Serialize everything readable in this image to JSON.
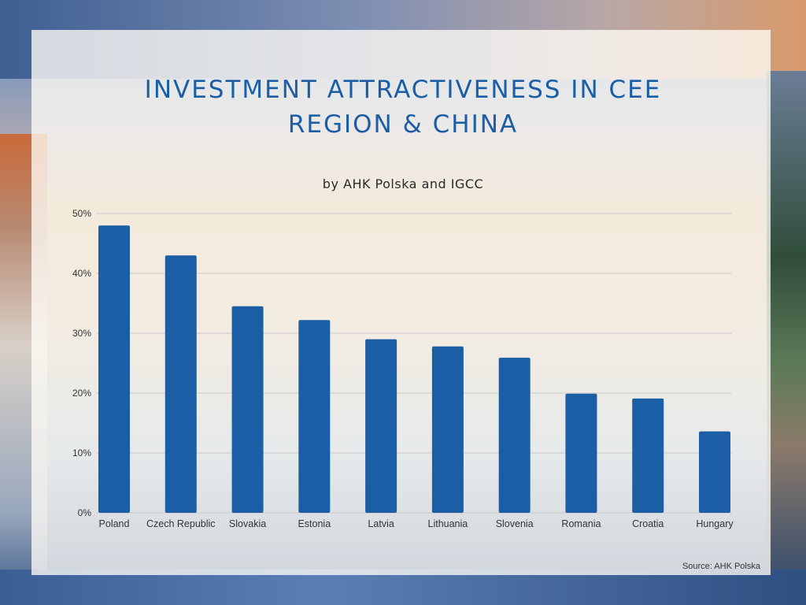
{
  "colors": {
    "bar": "#1b5ea5",
    "title": "#1b5ea5",
    "grid": "#c8c8c8"
  },
  "source_note": "Source: AHK Polska",
  "chart_data": {
    "type": "bar",
    "title_lines": [
      "INVESTMENT ATTRACTIVENESS IN CEE",
      "REGION & CHINA"
    ],
    "subtitle": "by AHK Polska and IGCC",
    "categories": [
      "Poland",
      "Czech Republic",
      "Slovakia",
      "Estonia",
      "Latvia",
      "Lithuania",
      "Slovenia",
      "Romania",
      "Croatia",
      "Hungary"
    ],
    "values": [
      48.0,
      43.0,
      34.5,
      32.2,
      29.0,
      27.8,
      25.9,
      19.9,
      19.1,
      13.6
    ],
    "yticks": [
      "0%",
      "10%",
      "20%",
      "30%",
      "40%",
      "50%"
    ],
    "ylim": [
      0,
      50
    ],
    "xlabel": "",
    "ylabel": "",
    "grid": true
  }
}
